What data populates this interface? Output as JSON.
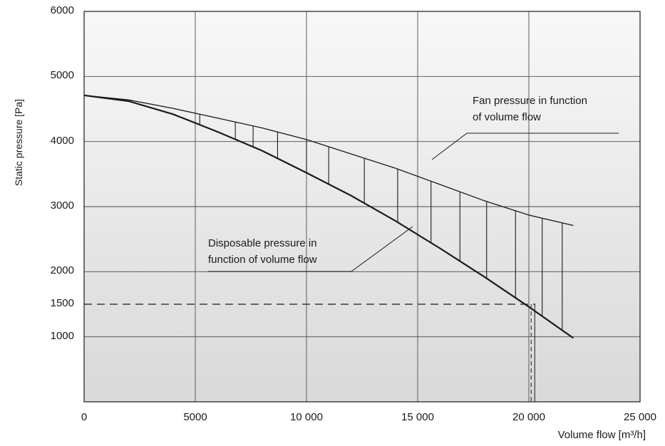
{
  "chart_data": {
    "type": "line",
    "title_fragment": "",
    "xlabel": "Volume flow [m³/h]",
    "ylabel": "Static pressure [Pa]",
    "xlim": [
      0,
      25000
    ],
    "ylim": [
      0,
      6000
    ],
    "x_ticks": [
      {
        "value": 0,
        "label": "0"
      },
      {
        "value": 5000,
        "label": "5000"
      },
      {
        "value": 10000,
        "label": "10 000"
      },
      {
        "value": 15000,
        "label": "15 000"
      },
      {
        "value": 20000,
        "label": "20 000"
      },
      {
        "value": 25000,
        "label": "25 000"
      }
    ],
    "y_ticks": [
      {
        "value": 1000,
        "label": "1000"
      },
      {
        "value": 1500,
        "label": "1500"
      },
      {
        "value": 2000,
        "label": "2000"
      },
      {
        "value": 3000,
        "label": "3000"
      },
      {
        "value": 4000,
        "label": "4000"
      },
      {
        "value": 5000,
        "label": "5000"
      },
      {
        "value": 6000,
        "label": "6000"
      }
    ],
    "grid": true,
    "series": [
      {
        "x": [
          0,
          2000,
          4000,
          6000,
          8000,
          10000,
          12000,
          14000,
          16000,
          18000,
          20000,
          22000
        ],
        "y": [
          4710,
          4640,
          4510,
          4360,
          4210,
          4030,
          3810,
          3590,
          3340,
          3090,
          2870,
          2710
        ]
      },
      {
        "x": [
          0,
          2000,
          4000,
          6000,
          8000,
          10000,
          12000,
          14000,
          16000,
          18000,
          20000,
          22000
        ],
        "y": [
          4710,
          4620,
          4420,
          4150,
          3860,
          3520,
          3170,
          2780,
          2360,
          1920,
          1460,
          980
        ]
      }
    ],
    "hatch_x": [
      5200,
      6800,
      7600,
      8700,
      10000,
      11000,
      12600,
      14100,
      15600,
      16900,
      18100,
      19400,
      20600,
      21500
    ],
    "operating_point": {
      "x": 20200,
      "y": 1500
    },
    "annotations": [
      {
        "lines": [
          "Fan pressure in function",
          "of volume flow"
        ]
      },
      {
        "lines": [
          "Disposable pressure in",
          "function of volume flow"
        ]
      }
    ],
    "colors": {
      "line": "#1a1a1a",
      "grid": "#4d4d4d",
      "bg_top": "#f8f8f8",
      "bg_bottom": "#d9d9d9"
    }
  }
}
